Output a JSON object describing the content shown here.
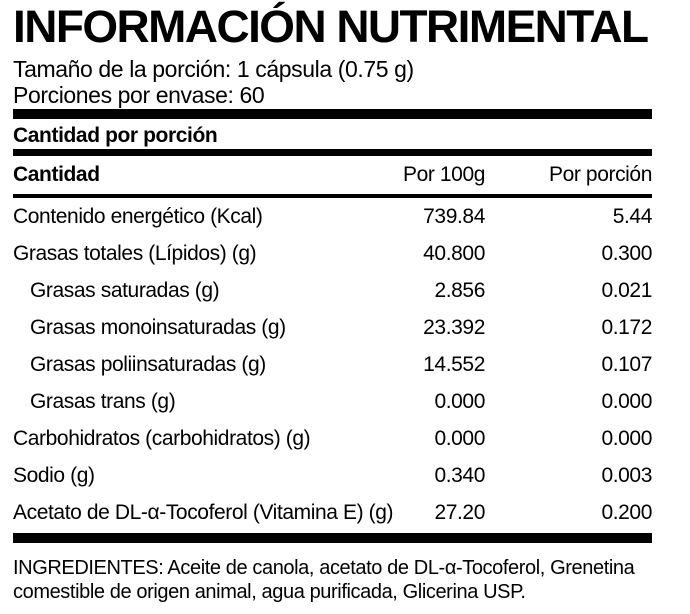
{
  "title": "INFORMACIÓN NUTRIMENTAL",
  "serving": {
    "size_label": "Tamaño de la porción: 1 cápsula (0.75 g)",
    "per_container_label": "Porciones por envase: 60"
  },
  "section_header": "Cantidad por porción",
  "table": {
    "columns": [
      "Cantidad",
      "Por 100g",
      "Por porción"
    ],
    "rows": [
      {
        "label": "Contenido energético (Kcal)",
        "per_100g": "739.84",
        "per_serving": "5.44",
        "indent": false
      },
      {
        "label": "Grasas totales (Lípidos) (g)",
        "per_100g": "40.800",
        "per_serving": "0.300",
        "indent": false
      },
      {
        "label": "Grasas saturadas (g)",
        "per_100g": "2.856",
        "per_serving": "0.021",
        "indent": true
      },
      {
        "label": "Grasas monoinsaturadas (g)",
        "per_100g": "23.392",
        "per_serving": "0.172",
        "indent": true
      },
      {
        "label": "Grasas poliinsaturadas (g)",
        "per_100g": "14.552",
        "per_serving": "0.107",
        "indent": true
      },
      {
        "label": "Grasas trans (g)",
        "per_100g": "0.000",
        "per_serving": "0.000",
        "indent": true
      },
      {
        "label": "Carbohidratos (carbohidratos) (g)",
        "per_100g": "0.000",
        "per_serving": "0.000",
        "indent": false
      },
      {
        "label": "Sodio (g)",
        "per_100g": "0.340",
        "per_serving": "0.003",
        "indent": false
      },
      {
        "label": "Acetato de DL-α-Tocoferol (Vitamina E) (g)",
        "per_100g": "27.20",
        "per_serving": "0.200",
        "indent": false
      }
    ]
  },
  "ingredients": "INGREDIENTES: Aceite de canola, acetato de DL-α-Tocoferol, Grenetina comestible de origen animal, agua purificada, Glicerina USP.",
  "colors": {
    "text": "#000000",
    "background": "#ffffff",
    "bars": "#000000"
  }
}
